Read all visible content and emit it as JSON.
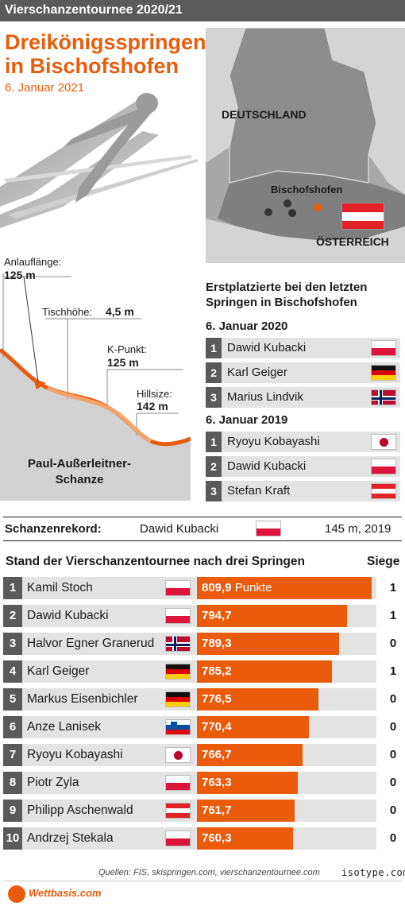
{
  "header": {
    "title": "Vierschanzentournee 2020/21"
  },
  "headline": {
    "line1": "Dreikönigsspringen in",
    "line2": "in Bischofshofen",
    "date": "6. Januar 2021"
  },
  "map": {
    "country_de": "DEUTSCHLAND",
    "country_at": "ÖSTERREICH",
    "city": "Bischofshofen"
  },
  "hill": {
    "anlauf_label": "Anlauflänge:",
    "anlauf_value": "125 m",
    "tisch_label": "Tischhöhe:",
    "tisch_value": "4,5 m",
    "kpunkt_label": "K-Punkt:",
    "kpunkt_value": "125 m",
    "hillsize_label": "Hillsize:",
    "hillsize_value": "142 m",
    "name_line1": "Paul-Außerleitner-",
    "name_line2": "Schanze"
  },
  "winners": {
    "heading_line1": "Erstplatzierte bei den letzten",
    "heading_line2": "Springen in Bischofshofen",
    "groups": [
      {
        "date": "6. Januar 2020",
        "entries": [
          {
            "rank": "1",
            "name": "Dawid Kubacki",
            "flag": "pol"
          },
          {
            "rank": "2",
            "name": "Karl Geiger",
            "flag": "ger"
          },
          {
            "rank": "3",
            "name": "Marius Lindvik",
            "flag": "nor"
          }
        ]
      },
      {
        "date": "6. Januar 2019",
        "entries": [
          {
            "rank": "1",
            "name": "Ryoyu Kobayashi",
            "flag": "jpn"
          },
          {
            "rank": "2",
            "name": "Dawid Kubacki",
            "flag": "pol"
          },
          {
            "rank": "3",
            "name": "Stefan Kraft",
            "flag": "aut"
          }
        ]
      }
    ]
  },
  "record": {
    "label": "Schanzenrekord:",
    "name": "Dawid Kubacki",
    "flag": "pol",
    "value": "145 m, 2019"
  },
  "chart_data": {
    "type": "bar",
    "title": "Stand der Vierschanzentournee nach drei Springen",
    "siege_header": "Siege",
    "unit_label": "Punkte",
    "categories": [
      "Kamil Stoch",
      "Dawid Kubacki",
      "Halvor Egner Granerud",
      "Karl Geiger",
      "Markus Eisenbichler",
      "Anze Lanisek",
      "Ryoyu Kobayashi",
      "Piotr Zyla",
      "Philipp Aschenwald",
      "Andrzej Stekala"
    ],
    "ranks": [
      "1",
      "2",
      "3",
      "4",
      "5",
      "6",
      "7",
      "8",
      "9",
      "10"
    ],
    "values": [
      809.9,
      794.7,
      789.3,
      785.2,
      776.5,
      770.4,
      766.7,
      763.3,
      761.7,
      760.3
    ],
    "value_labels": [
      "809,9",
      "794,7",
      "789,3",
      "785,2",
      "776,5",
      "770,4",
      "766,7",
      "763,3",
      "761,7",
      "760,3"
    ],
    "siege": [
      "1",
      "1",
      "0",
      "1",
      "0",
      "0",
      "0",
      "0",
      "0",
      "0"
    ],
    "flags": [
      "pol",
      "pol",
      "nor",
      "ger",
      "ger",
      "slo",
      "jpn",
      "pol",
      "aut",
      "pol"
    ]
  },
  "footer": {
    "sources": "Quellen: FIS, skispringen.com, vierschanzentournee.com",
    "brand": "isotype.com",
    "logo": "Wettbasis.com"
  },
  "colors": {
    "accent": "#ea5b0c",
    "header_bg": "#5a5a5a",
    "row_bg": "#e3e3e3",
    "map_bg": "#d4d4d4"
  }
}
